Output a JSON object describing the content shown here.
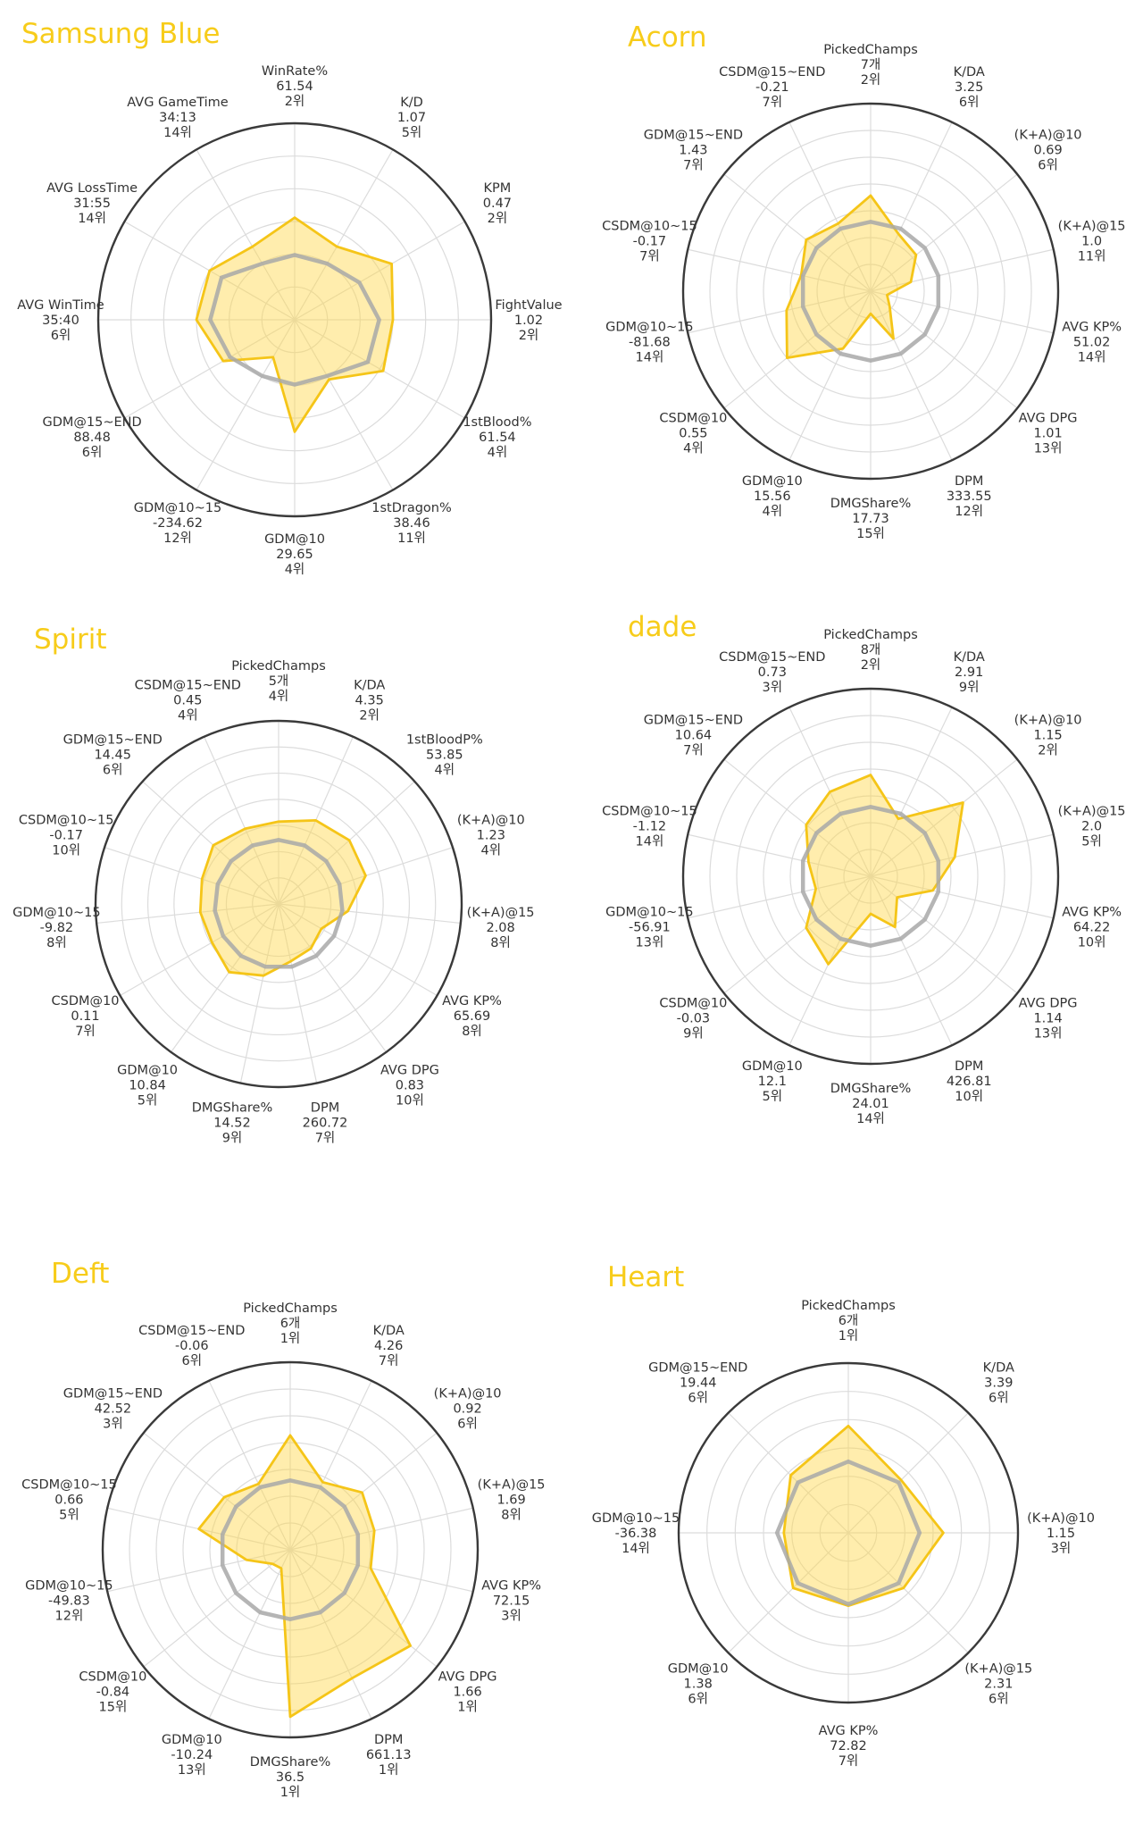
{
  "colors": {
    "title": "#f7cc1a",
    "team_fill": "#ffd84a",
    "team_stroke": "#f5c518",
    "average_line": "#a8a8a8",
    "grid": "#dcdcdc",
    "outer_ring": "#3a3a3a"
  },
  "chart_data": [
    {
      "type": "radar",
      "title": "Samsung Blue",
      "rmax": 1.0,
      "rings": 6,
      "axes": [
        {
          "name": "WinRate%",
          "value": "61.54",
          "rank": "2위"
        },
        {
          "name": "K/D",
          "value": "1.07",
          "rank": "5위"
        },
        {
          "name": "KPM",
          "value": "0.47",
          "rank": "2위"
        },
        {
          "name": "FightValue",
          "value": "1.02",
          "rank": "2위"
        },
        {
          "name": "1stBlood%",
          "value": "61.54",
          "rank": "4위"
        },
        {
          "name": "1stDragon%",
          "value": "38.46",
          "rank": "11위"
        },
        {
          "name": "GDM@10",
          "value": "29.65",
          "rank": "4위"
        },
        {
          "name": "GDM@10~15",
          "value": "-234.62",
          "rank": "12위"
        },
        {
          "name": "GDM@15~END",
          "value": "88.48",
          "rank": "6위"
        },
        {
          "name": "AVG WinTime",
          "value": "35:40",
          "rank": "6위"
        },
        {
          "name": "AVG LossTime",
          "value": "31:55",
          "rank": "14위"
        },
        {
          "name": "AVG GameTime",
          "value": "34:13",
          "rank": "14위"
        }
      ],
      "series": [
        {
          "role": "team",
          "values": [
            0.52,
            0.43,
            0.57,
            0.5,
            0.52,
            0.35,
            0.57,
            0.22,
            0.42,
            0.5,
            0.5,
            0.43
          ]
        },
        {
          "role": "average",
          "values": [
            0.33,
            0.33,
            0.38,
            0.43,
            0.43,
            0.33,
            0.33,
            0.33,
            0.38,
            0.43,
            0.43,
            0.33
          ]
        }
      ]
    },
    {
      "type": "radar",
      "title": "Acorn",
      "rmax": 1.0,
      "rings": 7,
      "axes": [
        {
          "name": "PickedChamps",
          "value": "7개",
          "rank": "2위"
        },
        {
          "name": "K/DA",
          "value": "3.25",
          "rank": "6위"
        },
        {
          "name": "(K+A)@10",
          "value": "0.69",
          "rank": "6위"
        },
        {
          "name": "(K+A)@15",
          "value": "1.0",
          "rank": "11위"
        },
        {
          "name": "AVG KP%",
          "value": "51.02",
          "rank": "14위"
        },
        {
          "name": "AVG DPG",
          "value": "1.01",
          "rank": "13위"
        },
        {
          "name": "DPM",
          "value": "333.55",
          "rank": "12위"
        },
        {
          "name": "DMGShare%",
          "value": "17.73",
          "rank": "15위"
        },
        {
          "name": "GDM@10",
          "value": "15.56",
          "rank": "4위"
        },
        {
          "name": "CSDM@10",
          "value": "0.55",
          "rank": "4위"
        },
        {
          "name": "GDM@10~15",
          "value": "-81.68",
          "rank": "14위"
        },
        {
          "name": "CSDM@10~15",
          "value": "-0.17",
          "rank": "7위"
        },
        {
          "name": "GDM@15~END",
          "value": "1.43",
          "rank": "7위"
        },
        {
          "name": "CSDM@15~END",
          "value": "-0.21",
          "rank": "7위"
        }
      ],
      "series": [
        {
          "role": "team",
          "values": [
            0.51,
            0.34,
            0.31,
            0.22,
            0.09,
            0.13,
            0.28,
            0.12,
            0.34,
            0.57,
            0.46,
            0.38,
            0.44,
            0.4
          ]
        },
        {
          "role": "average",
          "values": [
            0.37,
            0.37,
            0.37,
            0.37,
            0.37,
            0.37,
            0.37,
            0.37,
            0.37,
            0.37,
            0.37,
            0.37,
            0.37,
            0.37
          ]
        }
      ]
    },
    {
      "type": "radar",
      "title": "Spirit",
      "rmax": 1.0,
      "rings": 7,
      "axes": [
        {
          "name": "PickedChamps",
          "value": "5개",
          "rank": "4위"
        },
        {
          "name": "K/DA",
          "value": "4.35",
          "rank": "2위"
        },
        {
          "name": "1stBloodP%",
          "value": "53.85",
          "rank": "4위"
        },
        {
          "name": "(K+A)@10",
          "value": "1.23",
          "rank": "4위"
        },
        {
          "name": "(K+A)@15",
          "value": "2.08",
          "rank": "8위"
        },
        {
          "name": "AVG KP%",
          "value": "65.69",
          "rank": "8위"
        },
        {
          "name": "AVG DPG",
          "value": "0.83",
          "rank": "10위"
        },
        {
          "name": "DPM",
          "value": "260.72",
          "rank": "7위"
        },
        {
          "name": "DMGShare%",
          "value": "14.52",
          "rank": "9위"
        },
        {
          "name": "GDM@10",
          "value": "10.84",
          "rank": "5위"
        },
        {
          "name": "CSDM@10",
          "value": "0.11",
          "rank": "7위"
        },
        {
          "name": "GDM@10~15",
          "value": "-9.82",
          "rank": "8위"
        },
        {
          "name": "CSDM@10~15",
          "value": "-0.17",
          "rank": "10위"
        },
        {
          "name": "GDM@15~END",
          "value": "14.45",
          "rank": "6위"
        },
        {
          "name": "CSDM@15~END",
          "value": "0.45",
          "rank": "4위"
        }
      ],
      "series": [
        {
          "role": "team",
          "values": [
            0.45,
            0.5,
            0.52,
            0.5,
            0.38,
            0.27,
            0.3,
            0.32,
            0.4,
            0.46,
            0.42,
            0.43,
            0.44,
            0.48,
            0.45
          ]
        },
        {
          "role": "average",
          "values": [
            0.35,
            0.35,
            0.35,
            0.35,
            0.35,
            0.35,
            0.35,
            0.35,
            0.35,
            0.35,
            0.35,
            0.35,
            0.35,
            0.35,
            0.35
          ]
        }
      ]
    },
    {
      "type": "radar",
      "title": "dade",
      "rmax": 1.0,
      "rings": 7,
      "axes": [
        {
          "name": "PickedChamps",
          "value": "8개",
          "rank": "2위"
        },
        {
          "name": "K/DA",
          "value": "2.91",
          "rank": "9위"
        },
        {
          "name": "(K+A)@10",
          "value": "1.15",
          "rank": "2위"
        },
        {
          "name": "(K+A)@15",
          "value": "2.0",
          "rank": "5위"
        },
        {
          "name": "AVG KP%",
          "value": "64.22",
          "rank": "10위"
        },
        {
          "name": "AVG DPG",
          "value": "1.14",
          "rank": "13위"
        },
        {
          "name": "DPM",
          "value": "426.81",
          "rank": "10위"
        },
        {
          "name": "DMGShare%",
          "value": "24.01",
          "rank": "14위"
        },
        {
          "name": "GDM@10",
          "value": "12.1",
          "rank": "5위"
        },
        {
          "name": "CSDM@10",
          "value": "-0.03",
          "rank": "9위"
        },
        {
          "name": "GDM@10~15",
          "value": "-56.91",
          "rank": "13위"
        },
        {
          "name": "CSDM@10~15",
          "value": "-1.12",
          "rank": "14위"
        },
        {
          "name": "GDM@15~END",
          "value": "10.64",
          "rank": "7위"
        },
        {
          "name": "CSDM@15~END",
          "value": "0.73",
          "rank": "3위"
        }
      ],
      "series": [
        {
          "role": "team",
          "values": [
            0.54,
            0.34,
            0.63,
            0.46,
            0.34,
            0.18,
            0.3,
            0.2,
            0.52,
            0.44,
            0.3,
            0.34,
            0.44,
            0.5
          ]
        },
        {
          "role": "average",
          "values": [
            0.37,
            0.37,
            0.37,
            0.37,
            0.37,
            0.37,
            0.37,
            0.37,
            0.37,
            0.37,
            0.37,
            0.37,
            0.37,
            0.37
          ]
        }
      ]
    },
    {
      "type": "radar",
      "title": "Deft",
      "rmax": 1.0,
      "rings": 7,
      "axes": [
        {
          "name": "PickedChamps",
          "value": "6개",
          "rank": "1위"
        },
        {
          "name": "K/DA",
          "value": "4.26",
          "rank": "7위"
        },
        {
          "name": "(K+A)@10",
          "value": "0.92",
          "rank": "6위"
        },
        {
          "name": "(K+A)@15",
          "value": "1.69",
          "rank": "8위"
        },
        {
          "name": "AVG KP%",
          "value": "72.15",
          "rank": "3위"
        },
        {
          "name": "AVG DPG",
          "value": "1.66",
          "rank": "1위"
        },
        {
          "name": "DPM",
          "value": "661.13",
          "rank": "1위"
        },
        {
          "name": "DMGShare%",
          "value": "36.5",
          "rank": "1위"
        },
        {
          "name": "GDM@10",
          "value": "-10.24",
          "rank": "13위"
        },
        {
          "name": "CSDM@10",
          "value": "-0.84",
          "rank": "15위"
        },
        {
          "name": "GDM@10~15",
          "value": "-49.83",
          "rank": "12위"
        },
        {
          "name": "CSDM@10~15",
          "value": "0.66",
          "rank": "5위"
        },
        {
          "name": "GDM@15~END",
          "value": "42.52",
          "rank": "3위"
        },
        {
          "name": "CSDM@15~END",
          "value": "-0.06",
          "rank": "6위"
        }
      ],
      "series": [
        {
          "role": "team",
          "values": [
            0.61,
            0.4,
            0.49,
            0.46,
            0.44,
            0.82,
            0.76,
            0.89,
            0.11,
            0.12,
            0.24,
            0.5,
            0.45,
            0.39
          ]
        },
        {
          "role": "average",
          "values": [
            0.37,
            0.37,
            0.37,
            0.37,
            0.37,
            0.37,
            0.37,
            0.37,
            0.37,
            0.37,
            0.37,
            0.37,
            0.37,
            0.37
          ]
        }
      ]
    },
    {
      "type": "radar",
      "title": "Heart",
      "rmax": 1.0,
      "rings": 6,
      "axes": [
        {
          "name": "PickedChamps",
          "value": "6개",
          "rank": "1위"
        },
        {
          "name": "K/DA",
          "value": "3.39",
          "rank": "6위"
        },
        {
          "name": "(K+A)@10",
          "value": "1.15",
          "rank": "3위"
        },
        {
          "name": "(K+A)@15",
          "value": "2.31",
          "rank": "6위"
        },
        {
          "name": "AVG KP%",
          "value": "72.82",
          "rank": "7위"
        },
        {
          "name": "GDM@10",
          "value": "1.38",
          "rank": "6위"
        },
        {
          "name": "GDM@10~15",
          "value": "-36.38",
          "rank": "14위"
        },
        {
          "name": "GDM@15~END",
          "value": "19.44",
          "rank": "6위"
        }
      ],
      "series": [
        {
          "role": "team",
          "values": [
            0.63,
            0.44,
            0.56,
            0.46,
            0.43,
            0.46,
            0.38,
            0.48
          ]
        },
        {
          "role": "average",
          "values": [
            0.42,
            0.42,
            0.42,
            0.42,
            0.42,
            0.42,
            0.42,
            0.42
          ]
        }
      ]
    }
  ]
}
